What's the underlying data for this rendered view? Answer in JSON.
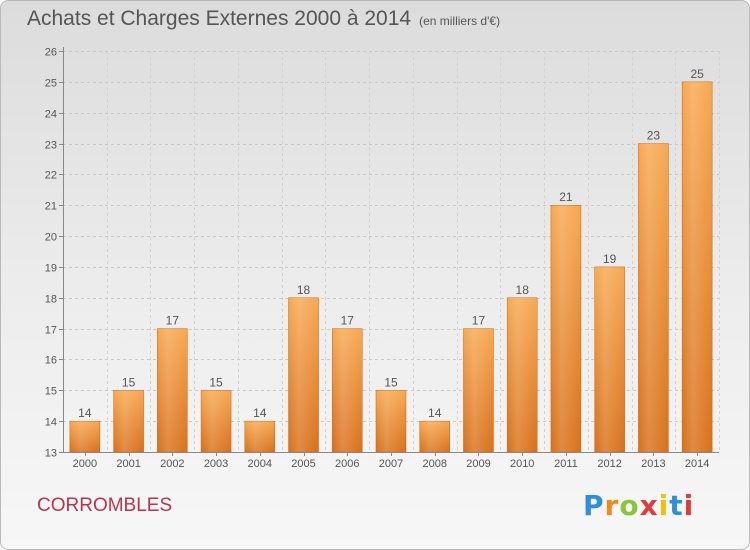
{
  "chart_data": {
    "type": "bar",
    "title": "Achats et Charges Externes 2000 à 2014",
    "subtitle": "(en milliers d'€)",
    "categories": [
      "2000",
      "2001",
      "2002",
      "2003",
      "2004",
      "2005",
      "2006",
      "2007",
      "2008",
      "2009",
      "2010",
      "2011",
      "2012",
      "2013",
      "2014"
    ],
    "values": [
      14,
      15,
      17,
      15,
      14,
      18,
      17,
      15,
      14,
      17,
      18,
      21,
      19,
      23,
      25
    ],
    "ylim": [
      13,
      26
    ],
    "yticks": [
      13,
      14,
      15,
      16,
      17,
      18,
      19,
      20,
      21,
      22,
      23,
      24,
      25,
      26
    ],
    "grid": true,
    "bar_color": "#f0892a"
  },
  "footer": {
    "commune": "CORROMBLES",
    "logo_text": "Proxiti"
  }
}
